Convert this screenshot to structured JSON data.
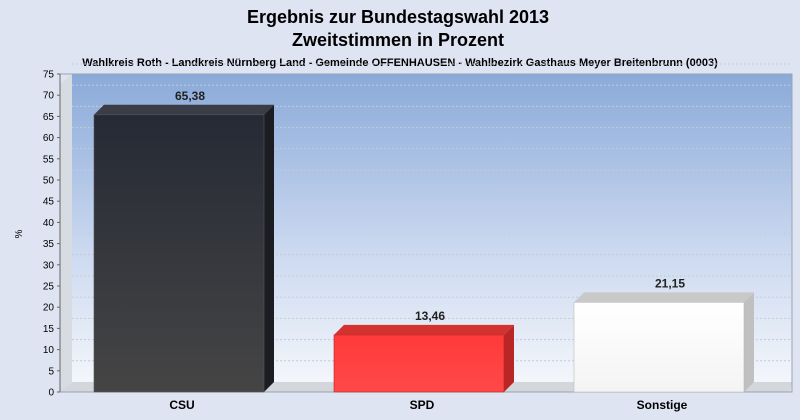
{
  "chart_data": {
    "type": "bar",
    "title": "Ergebnis zur Bundestagswahl 2013",
    "subtitle": "Zweitstimmen in Prozent",
    "description": "Wahlkreis Roth - Landkreis Nürnberg Land - Gemeinde OFFENHAUSEN - Wahlbezirk Gasthaus Meyer Breitenbrunn (0003)",
    "ylabel": "%",
    "xlabel": "",
    "ylim": [
      0,
      75
    ],
    "yticks": [
      "0",
      "5",
      "10",
      "15",
      "20",
      "25",
      "30",
      "35",
      "40",
      "45",
      "50",
      "55",
      "60",
      "65",
      "70",
      "75"
    ],
    "categories": [
      "CSU",
      "SPD",
      "Sonstige"
    ],
    "values": [
      65.38,
      13.46,
      21.15
    ],
    "value_labels": [
      "65,38",
      "13,46",
      "21,15"
    ],
    "colors": [
      "#2b2b2b",
      "#ff3434",
      "#ffffff"
    ],
    "grid": true
  }
}
